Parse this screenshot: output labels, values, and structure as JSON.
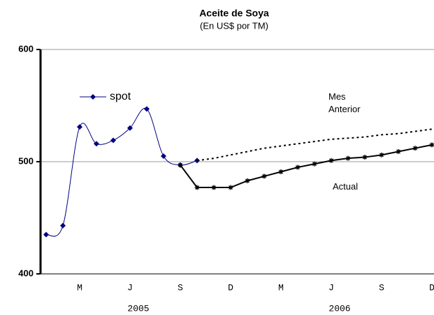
{
  "chart_data": {
    "type": "line",
    "title": "Aceite de Soya",
    "subtitle": "(En US$ por TM)",
    "categories": [
      null,
      null,
      "M",
      null,
      null,
      "J",
      null,
      null,
      "S",
      null,
      null,
      "D",
      null,
      null,
      "M",
      null,
      null,
      "J",
      null,
      null,
      "S",
      null,
      null,
      "D"
    ],
    "year_labels": [
      "2005",
      "2006"
    ],
    "ylim": [
      400,
      600
    ],
    "yticks": [
      400,
      500,
      600
    ],
    "grid": true,
    "series": [
      {
        "name": "spot",
        "color": "#000080",
        "style": "smooth",
        "values": [
          435,
          443,
          531,
          516,
          519,
          530,
          547,
          505,
          497,
          501,
          null,
          null,
          null,
          null,
          null,
          null,
          null,
          null,
          null,
          null,
          null,
          null,
          null,
          null
        ]
      },
      {
        "name": "Mes Anterior",
        "color": "#000000",
        "style": "dotted",
        "values": [
          null,
          null,
          null,
          null,
          null,
          null,
          null,
          null,
          null,
          501,
          503,
          506,
          509,
          512,
          514,
          516,
          518,
          520,
          521,
          522,
          524,
          525,
          527,
          529
        ]
      },
      {
        "name": "Actual",
        "color": "#000000",
        "style": "solid",
        "values": [
          null,
          null,
          null,
          null,
          null,
          null,
          null,
          null,
          497,
          477,
          477,
          477,
          483,
          487,
          491,
          495,
          498,
          501,
          503,
          504,
          506,
          509,
          512,
          515
        ]
      }
    ]
  }
}
